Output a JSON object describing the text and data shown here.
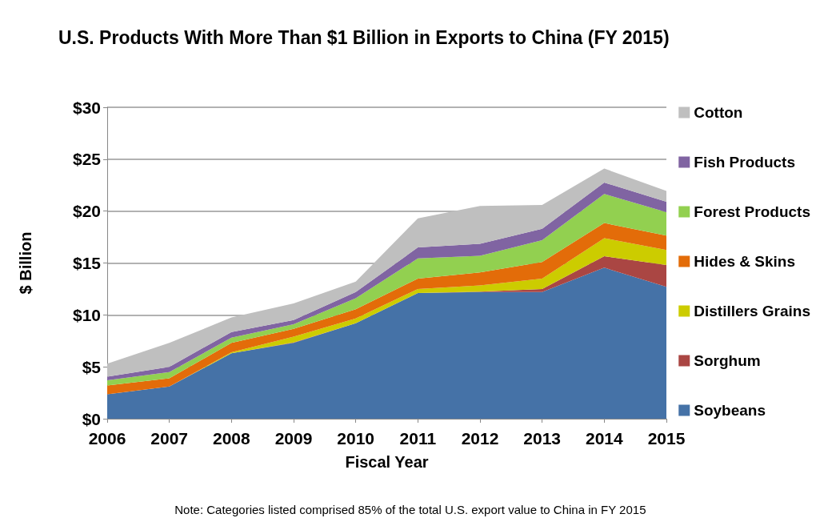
{
  "chart_data": {
    "type": "area",
    "stacked": true,
    "title": "U.S. Products With More Than $1 Billion in Exports to China (FY 2015)",
    "xlabel": "Fiscal Year",
    "ylabel": "$ Billion",
    "annotations": [
      "Note: Categories listed comprised 85% of the total U.S. export value to China in FY 2015"
    ],
    "categories": [
      "2006",
      "2007",
      "2008",
      "2009",
      "2010",
      "2011",
      "2012",
      "2013",
      "2014",
      "2015"
    ],
    "series": [
      {
        "name": "Soybeans",
        "color": "#4572a7",
        "values": [
          2.35,
          3.1,
          6.3,
          7.3,
          9.2,
          12.1,
          12.2,
          12.2,
          14.55,
          12.7
        ]
      },
      {
        "name": "Sorghum",
        "color": "#aa4643",
        "values": [
          0,
          0,
          0,
          0.05,
          0,
          0,
          0.05,
          0.3,
          1.1,
          2.1
        ]
      },
      {
        "name": "Distillers Grains",
        "color": "#cccc00",
        "values": [
          0,
          0,
          0.1,
          0.55,
          0.45,
          0.4,
          0.6,
          1.0,
          1.75,
          1.45
        ]
      },
      {
        "name": "Hides & Skins",
        "color": "#e36c09",
        "values": [
          0.85,
          0.8,
          0.9,
          0.75,
          0.9,
          1.0,
          1.25,
          1.6,
          1.45,
          1.4
        ]
      },
      {
        "name": "Forest Products",
        "color": "#92d050",
        "values": [
          0.5,
          0.6,
          0.5,
          0.45,
          1.05,
          1.95,
          1.6,
          2.1,
          2.8,
          2.25
        ]
      },
      {
        "name": "Fish Products",
        "color": "#8064a2",
        "values": [
          0.35,
          0.5,
          0.55,
          0.4,
          0.6,
          1.05,
          1.15,
          1.1,
          1.1,
          1.0
        ]
      },
      {
        "name": "Cotton",
        "color": "#bfbfbf",
        "values": [
          1.25,
          2.3,
          1.4,
          1.6,
          1.0,
          2.8,
          3.65,
          2.3,
          1.35,
          1.05
        ]
      }
    ],
    "ylim": [
      0,
      30
    ],
    "yticks": [
      {
        "value": 0,
        "label": "$0"
      },
      {
        "value": 5,
        "label": "$5"
      },
      {
        "value": 10,
        "label": "$10"
      },
      {
        "value": 15,
        "label": "$15"
      },
      {
        "value": 20,
        "label": "$20"
      },
      {
        "value": 25,
        "label": "$25"
      },
      {
        "value": 30,
        "label": "$30"
      }
    ],
    "grid": "y",
    "legend": "right"
  }
}
